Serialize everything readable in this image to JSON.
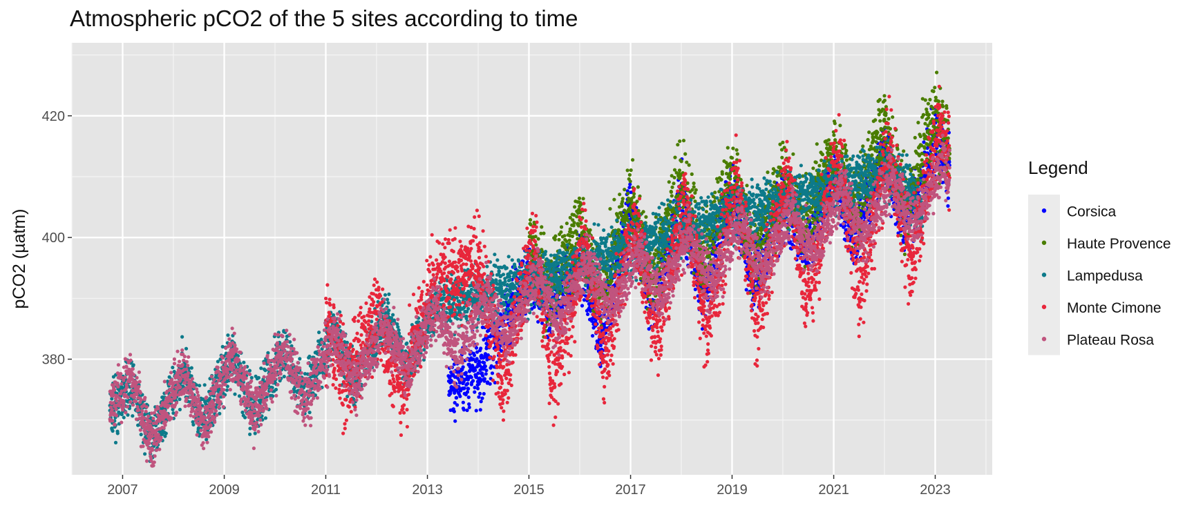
{
  "chart_data": {
    "type": "scatter",
    "title": "Atmospheric pCO2 of the 5 sites according to time",
    "xlabel": "",
    "ylabel": "pCO2 (µatm)",
    "xlim": [
      "2006-01-01",
      "2024-02-15"
    ],
    "ylim": [
      361,
      432
    ],
    "x_ticks": [
      "2007",
      "2009",
      "2011",
      "2013",
      "2015",
      "2017",
      "2019",
      "2021",
      "2023"
    ],
    "y_ticks": [
      380,
      400,
      420
    ],
    "grid": true,
    "legend": {
      "title": "Legend",
      "position": "right"
    },
    "series": [
      {
        "name": "Corsica",
        "color": "#0000ff",
        "start": "2013-06-01",
        "end": "2023-04-15",
        "x": [
          "2013-06-01",
          "2014-01-01",
          "2014-06-01",
          "2015-01-01",
          "2015-06-01",
          "2016-01-01",
          "2016-06-01",
          "2017-01-01",
          "2017-06-01",
          "2018-01-01",
          "2018-06-01",
          "2019-01-01",
          "2019-06-01",
          "2020-01-01",
          "2020-06-01",
          "2021-01-01",
          "2021-06-01",
          "2022-01-01",
          "2022-06-01",
          "2023-01-01",
          "2023-04-15"
        ],
        "y": [
          375,
          378,
          384,
          395,
          387,
          397,
          383,
          405,
          389,
          406,
          391,
          408,
          392,
          406,
          398,
          410,
          400,
          414,
          402,
          416,
          412
        ]
      },
      {
        "name": "Haute Provence",
        "color": "#4a7d00",
        "start": "2015-01-01",
        "end": "2023-04-15",
        "x": [
          "2015-01-01",
          "2015-06-01",
          "2016-01-01",
          "2016-06-01",
          "2017-01-01",
          "2017-06-01",
          "2018-01-01",
          "2018-06-01",
          "2019-01-01",
          "2019-06-01",
          "2020-01-01",
          "2020-06-01",
          "2021-01-01",
          "2021-06-01",
          "2022-01-01",
          "2022-06-01",
          "2023-01-01",
          "2023-04-15"
        ],
        "y": [
          398,
          391,
          402,
          391,
          406,
          394,
          409,
          397,
          410,
          397,
          409,
          402,
          414,
          405,
          418,
          405,
          420,
          414
        ]
      },
      {
        "name": "Lampedusa",
        "color": "#0d7a8a",
        "start": "2006-10-01",
        "end": "2022-10-01",
        "x": [
          "2006-10-01",
          "2007-03-01",
          "2007-08-01",
          "2008-03-01",
          "2008-08-01",
          "2009-03-01",
          "2009-08-01",
          "2010-03-01",
          "2010-08-01",
          "2011-03-01",
          "2011-08-01",
          "2012-03-01",
          "2012-08-01",
          "2013-03-01",
          "2015-03-01",
          "2016-03-01",
          "2017-03-01",
          "2018-03-01",
          "2019-03-01",
          "2020-03-01",
          "2021-03-01",
          "2022-03-01",
          "2022-10-01"
        ],
        "y": [
          371,
          376,
          367,
          378,
          370,
          381,
          371,
          382,
          374,
          385,
          376,
          387,
          379,
          389,
          393,
          396,
          399,
          402,
          404,
          406,
          409,
          411,
          404
        ]
      },
      {
        "name": "Monte Cimone",
        "color": "#e8263b",
        "start": "2011-01-01",
        "end": "2023-04-15",
        "x": [
          "2011-01-01",
          "2011-06-01",
          "2012-01-01",
          "2012-07-01",
          "2013-02-01",
          "2014-01-01",
          "2014-07-01",
          "2015-02-01",
          "2015-07-01",
          "2016-02-01",
          "2016-07-01",
          "2017-02-01",
          "2017-07-01",
          "2018-02-01",
          "2018-07-01",
          "2019-02-01",
          "2019-07-01",
          "2020-02-01",
          "2020-07-01",
          "2021-02-01",
          "2021-07-01",
          "2022-02-01",
          "2022-07-01",
          "2023-02-01",
          "2023-04-15"
        ],
        "y": [
          386,
          376,
          388,
          375,
          392,
          396,
          377,
          399,
          376,
          399,
          380,
          403,
          384,
          406,
          385,
          409,
          387,
          410,
          390,
          414,
          392,
          415,
          396,
          418,
          412
        ]
      },
      {
        "name": "Plateau Rosa",
        "color": "#c0547e",
        "start": "2006-10-01",
        "end": "2023-04-15",
        "x": [
          "2006-10-01",
          "2007-03-01",
          "2007-08-01",
          "2008-03-01",
          "2008-08-01",
          "2009-03-01",
          "2009-08-01",
          "2010-03-01",
          "2010-08-01",
          "2011-03-01",
          "2011-08-01",
          "2012-03-01",
          "2012-08-01",
          "2013-03-01",
          "2013-08-01",
          "2014-03-01",
          "2014-08-01",
          "2015-03-01",
          "2015-08-01",
          "2016-03-01",
          "2016-08-01",
          "2017-03-01",
          "2017-08-01",
          "2018-03-01",
          "2018-08-01",
          "2019-03-01",
          "2019-08-01",
          "2020-03-01",
          "2020-08-01",
          "2021-03-01",
          "2021-08-01",
          "2022-03-01",
          "2022-08-01",
          "2023-03-01",
          "2023-04-15"
        ],
        "y": [
          372,
          377,
          366,
          378,
          369,
          381,
          371,
          382,
          373,
          384,
          376,
          386,
          378,
          389,
          380,
          391,
          383,
          394,
          386,
          396,
          388,
          398,
          390,
          401,
          392,
          403,
          394,
          405,
          397,
          408,
          400,
          410,
          402,
          412,
          410
        ]
      }
    ]
  }
}
